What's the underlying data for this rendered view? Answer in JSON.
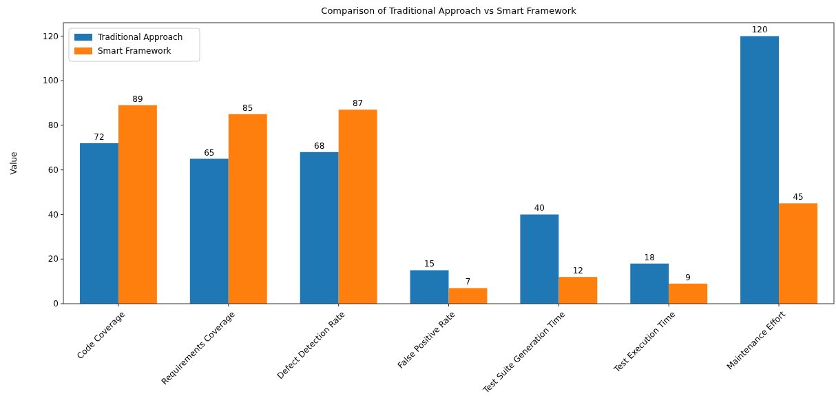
{
  "chart_data": {
    "type": "bar",
    "title": "Comparison of Traditional Approach vs Smart Framework",
    "ylabel": "Value",
    "categories": [
      "Code Coverage",
      "Requirements Coverage",
      "Defect Detection Rate",
      "False Positive Rate",
      "Test Suite Generation Time",
      "Test Execution Time",
      "Maintenance Effort"
    ],
    "series": [
      {
        "name": "Traditional Approach",
        "color": "#1f77b4",
        "values": [
          72,
          65,
          68,
          15,
          40,
          18,
          120
        ]
      },
      {
        "name": "Smart Framework",
        "color": "#ff7f0e",
        "values": [
          89,
          85,
          87,
          7,
          12,
          9,
          45
        ]
      }
    ],
    "ylim": [
      0,
      126
    ],
    "yticks": [
      0,
      20,
      40,
      60,
      80,
      100,
      120
    ],
    "data_labels": true,
    "legend": "top left",
    "grid": false
  }
}
